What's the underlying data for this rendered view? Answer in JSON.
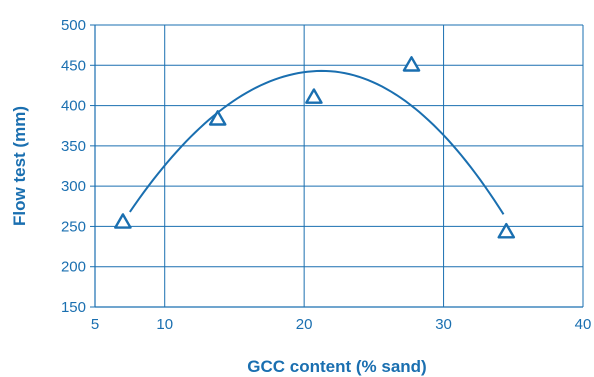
{
  "colors": {
    "accent": "#1a6fb0",
    "grid": "#1a6fb0"
  },
  "chart_data": {
    "type": "scatter",
    "title": "",
    "xlabel": "GCC content (% sand)",
    "ylabel": "Flow test (mm)",
    "xlim": [
      5,
      40
    ],
    "ylim": [
      150,
      500
    ],
    "xticks": [
      5,
      10,
      20,
      30,
      40
    ],
    "xgrid": [
      10,
      20,
      30,
      40
    ],
    "yticks": [
      150,
      200,
      250,
      300,
      350,
      400,
      450,
      500
    ],
    "grid": true,
    "marker": "triangle-open",
    "series": [
      {
        "x": [
          7,
          13.8,
          20.7,
          27.7,
          34.5
        ],
        "y": [
          255,
          383,
          410,
          450,
          243
        ]
      }
    ],
    "trendline": {
      "type": "polynomial-2",
      "x_range": [
        7.5,
        34.3
      ],
      "peak_x": 21.3,
      "peak_y": 443,
      "start_y": 268,
      "end_y": 265
    }
  }
}
